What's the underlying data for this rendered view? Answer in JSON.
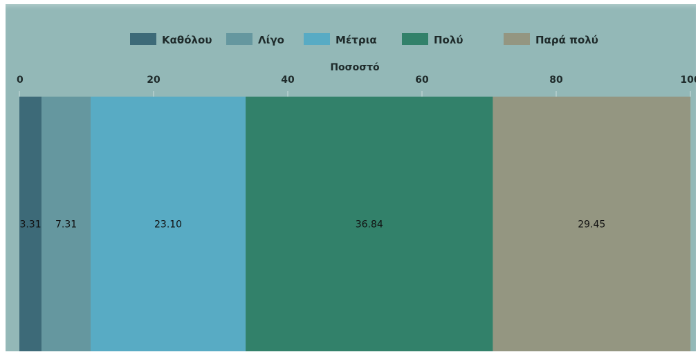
{
  "chart_data": {
    "type": "bar",
    "orientation": "horizontal",
    "stacked": true,
    "xlabel": "Ποσοστό",
    "xlim": [
      0,
      100
    ],
    "xticks": [
      "0",
      "20",
      "40",
      "60",
      "80",
      "100"
    ],
    "legend_placement": "top-center",
    "grid": false,
    "series": [
      {
        "name": "Καθόλου",
        "value": 3.31,
        "label": "3.31",
        "color": "#3d6a78"
      },
      {
        "name": "Λίγο",
        "value": 7.31,
        "label": "7.31",
        "color": "#65979f"
      },
      {
        "name": "Μέτρια",
        "value": 23.1,
        "label": "23.10",
        "color": "#58abc4"
      },
      {
        "name": "Πολύ",
        "value": 36.84,
        "label": "36.84",
        "color": "#32816a"
      },
      {
        "name": "Παρά πολύ",
        "value": 29.45,
        "label": "29.45",
        "color": "#949681"
      }
    ]
  }
}
